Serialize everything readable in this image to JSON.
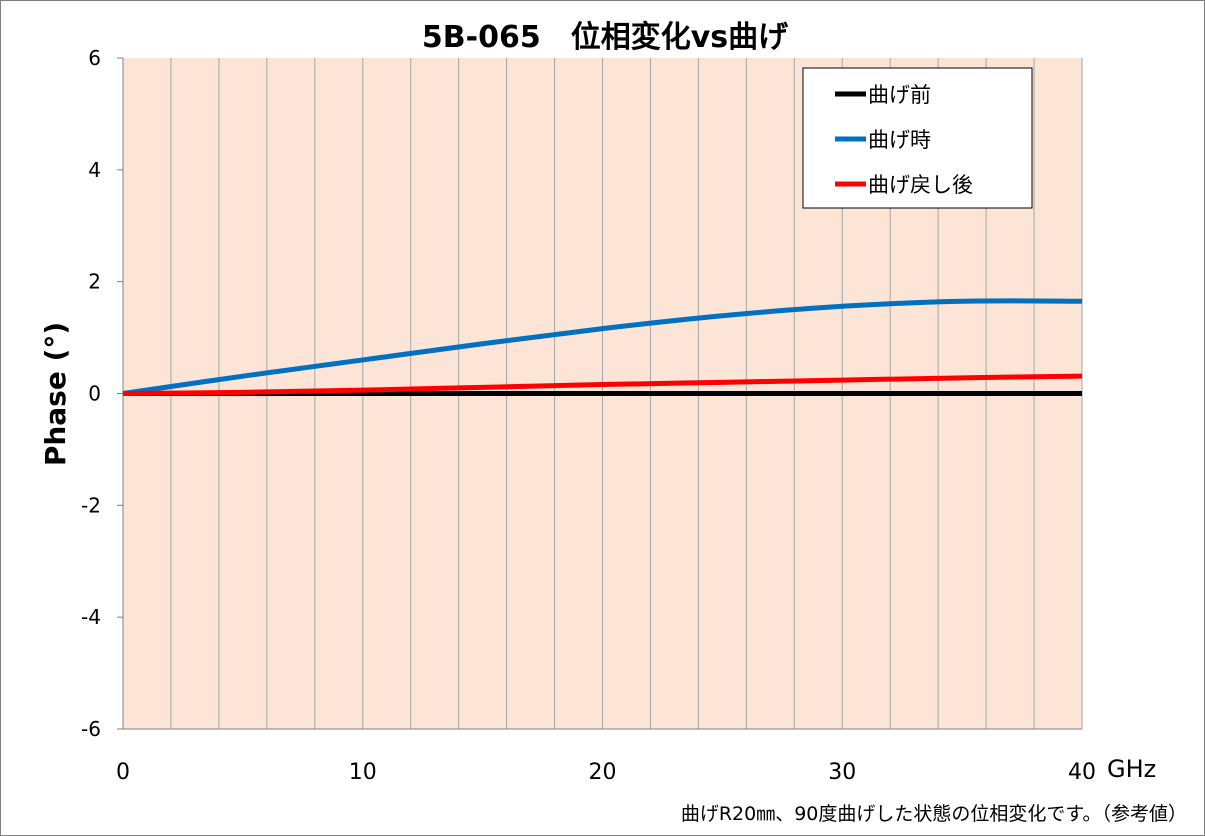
{
  "chart_data": {
    "type": "line",
    "title": "5B-065　位相変化vs曲げ",
    "xlabel": "",
    "x_unit_label": "GHz",
    "ylabel": "Phase (°)",
    "xlim": [
      0,
      40
    ],
    "ylim": [
      -6,
      6
    ],
    "x_ticks": [
      "0",
      "10",
      "20",
      "30",
      "40"
    ],
    "y_ticks": [
      "6",
      "4",
      "2",
      "0",
      "-2",
      "-4",
      "-6"
    ],
    "grid": "vertical",
    "plot_background": "#fce4d6",
    "legend_position": "top-right",
    "footnote": "曲げR20㎜、90度曲げした状態の位相変化です。（参考値）",
    "series": [
      {
        "name": "曲げ前",
        "color": "#000000",
        "x": [
          0,
          5,
          10,
          15,
          20,
          25,
          30,
          35,
          40
        ],
        "y": [
          0,
          0,
          0,
          0,
          0,
          0,
          0,
          0,
          0
        ]
      },
      {
        "name": "曲げ時",
        "color": "#0070c0",
        "x": [
          0,
          5,
          10,
          15,
          20,
          25,
          30,
          35,
          40
        ],
        "y": [
          0,
          0.31,
          0.6,
          0.89,
          1.16,
          1.39,
          1.56,
          1.65,
          1.65
        ]
      },
      {
        "name": "曲げ戻し後",
        "color": "#ff0000",
        "x": [
          0,
          5,
          10,
          15,
          20,
          25,
          30,
          35,
          40
        ],
        "y": [
          0,
          0.02,
          0.06,
          0.11,
          0.16,
          0.2,
          0.24,
          0.28,
          0.31
        ]
      }
    ]
  }
}
